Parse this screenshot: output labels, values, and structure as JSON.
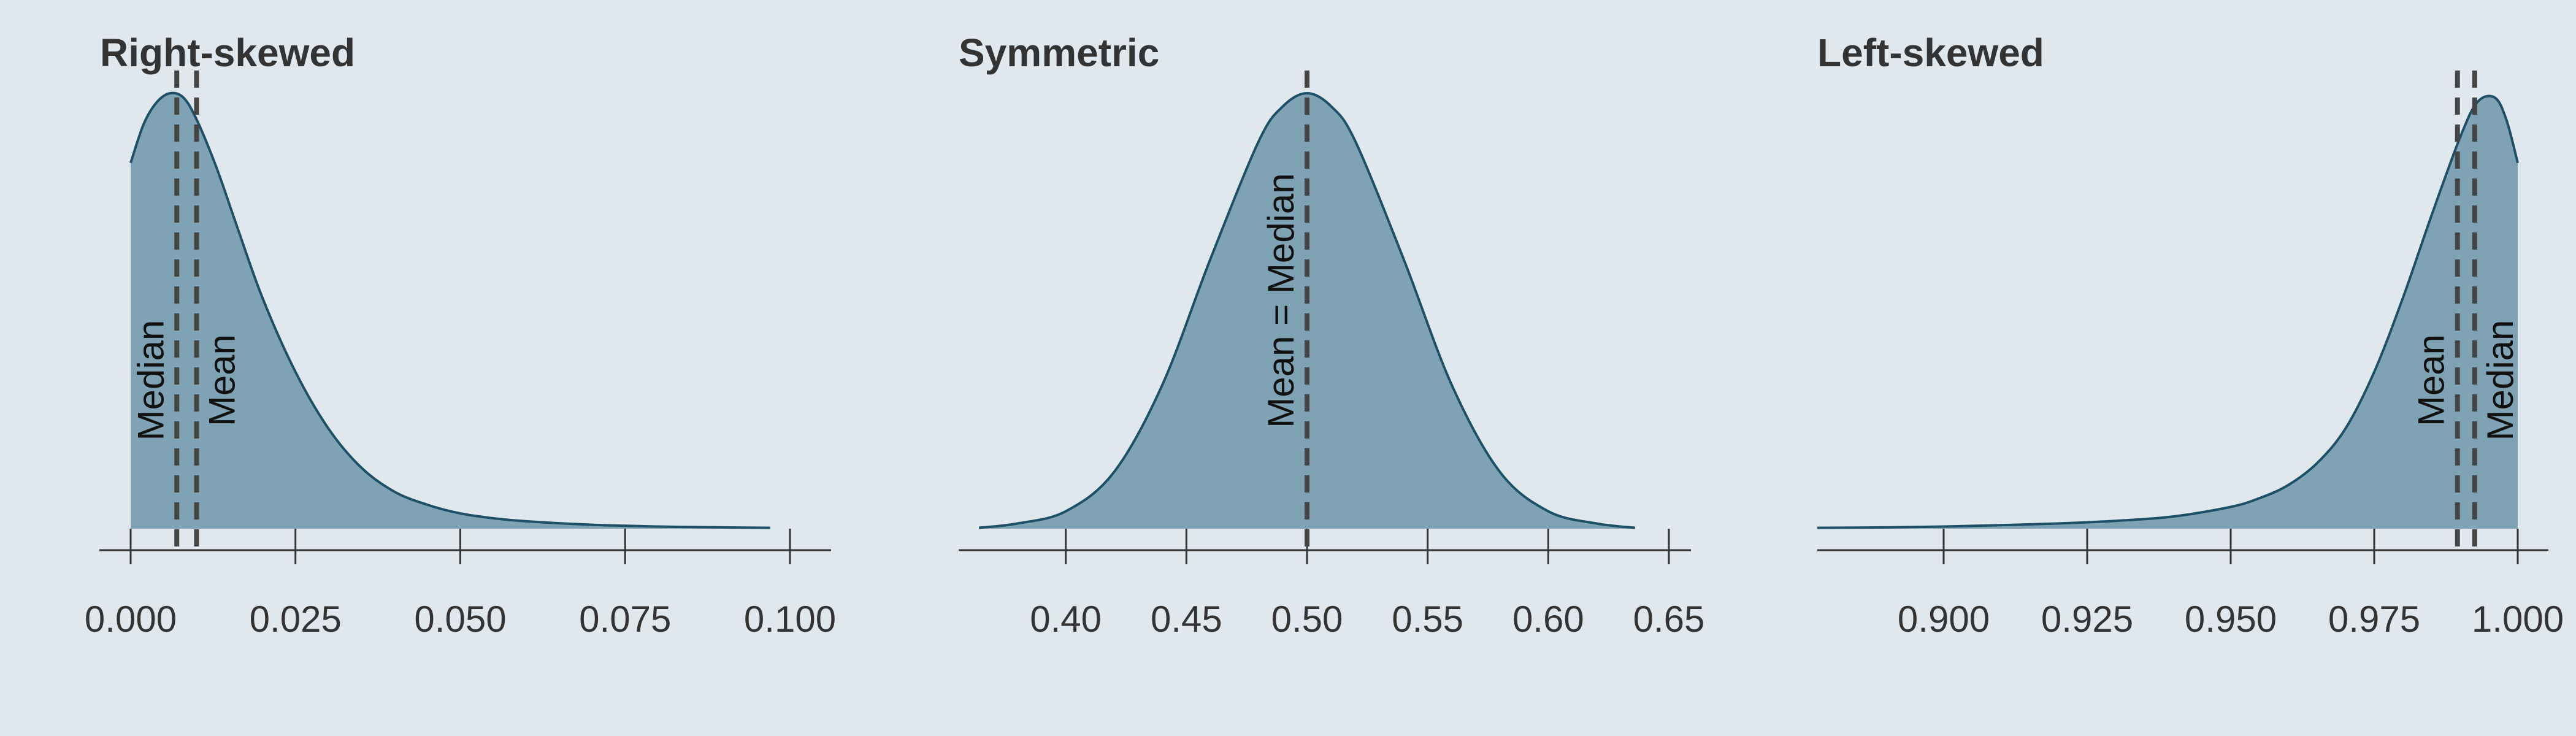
{
  "chart_data": [
    {
      "type": "area",
      "title": "Right-skewed",
      "xlim": [
        0.0,
        0.1
      ],
      "x_ticks": [
        0.0,
        0.025,
        0.05,
        0.075,
        0.1
      ],
      "x_tick_labels": [
        "0.000",
        "0.025",
        "0.050",
        "0.075",
        "0.100"
      ],
      "grid": false,
      "density": {
        "x": [
          0.0,
          0.002,
          0.004,
          0.006,
          0.008,
          0.01,
          0.013,
          0.016,
          0.02,
          0.025,
          0.03,
          0.035,
          0.04,
          0.045,
          0.05,
          0.055,
          0.06,
          0.07,
          0.08,
          0.09,
          0.097
        ],
        "y": [
          0.84,
          0.93,
          0.98,
          1.0,
          0.99,
          0.94,
          0.83,
          0.7,
          0.53,
          0.36,
          0.23,
          0.14,
          0.085,
          0.055,
          0.035,
          0.024,
          0.017,
          0.009,
          0.005,
          0.003,
          0.002
        ]
      },
      "reference_lines": [
        {
          "label": "Median",
          "x": 0.007,
          "label_side": "left"
        },
        {
          "label": "Mean",
          "x": 0.01,
          "label_side": "right"
        }
      ]
    },
    {
      "type": "area",
      "title": "Symmetric",
      "xlim": [
        0.35,
        0.65
      ],
      "x_ticks": [
        0.4,
        0.45,
        0.5,
        0.55,
        0.6,
        0.65
      ],
      "x_tick_labels": [
        "0.40",
        "0.45",
        "0.50",
        "0.55",
        "0.60",
        "0.65"
      ],
      "grid": false,
      "density": {
        "x": [
          0.364,
          0.38,
          0.4,
          0.42,
          0.44,
          0.46,
          0.48,
          0.49,
          0.5,
          0.51,
          0.52,
          0.54,
          0.56,
          0.58,
          0.6,
          0.62,
          0.636
        ],
        "y": [
          0.002,
          0.012,
          0.04,
          0.13,
          0.33,
          0.62,
          0.89,
          0.97,
          1.0,
          0.97,
          0.89,
          0.62,
          0.33,
          0.13,
          0.04,
          0.012,
          0.002
        ]
      },
      "reference_lines": [
        {
          "label": "Mean = Median",
          "x": 0.5,
          "label_side": "left"
        }
      ]
    },
    {
      "type": "area",
      "title": "Left-skewed",
      "xlim": [
        0.875,
        1.0
      ],
      "x_ticks": [
        0.9,
        0.925,
        0.95,
        0.975,
        1.0
      ],
      "x_tick_labels": [
        "0.900",
        "0.925",
        "0.950",
        "0.975",
        "1.000"
      ],
      "grid": false,
      "density": {
        "x": [
          0.878,
          0.89,
          0.9,
          0.91,
          0.92,
          0.93,
          0.94,
          0.95,
          0.955,
          0.96,
          0.965,
          0.97,
          0.975,
          0.98,
          0.985,
          0.99,
          0.993,
          0.996,
          0.998,
          1.0
        ],
        "y": [
          0.002,
          0.003,
          0.005,
          0.008,
          0.012,
          0.018,
          0.028,
          0.05,
          0.07,
          0.1,
          0.15,
          0.23,
          0.36,
          0.53,
          0.72,
          0.9,
          0.98,
          0.99,
          0.94,
          0.84
        ]
      },
      "reference_lines": [
        {
          "label": "Mean",
          "x": 0.9895,
          "label_side": "left"
        },
        {
          "label": "Median",
          "x": 0.9925,
          "label_side": "right"
        }
      ]
    }
  ],
  "colors": {
    "background": "#e0e7ed",
    "fill": "#7fa3b4",
    "outline": "#1d4f66",
    "reference_line": "#444444",
    "axis": "#333333"
  }
}
